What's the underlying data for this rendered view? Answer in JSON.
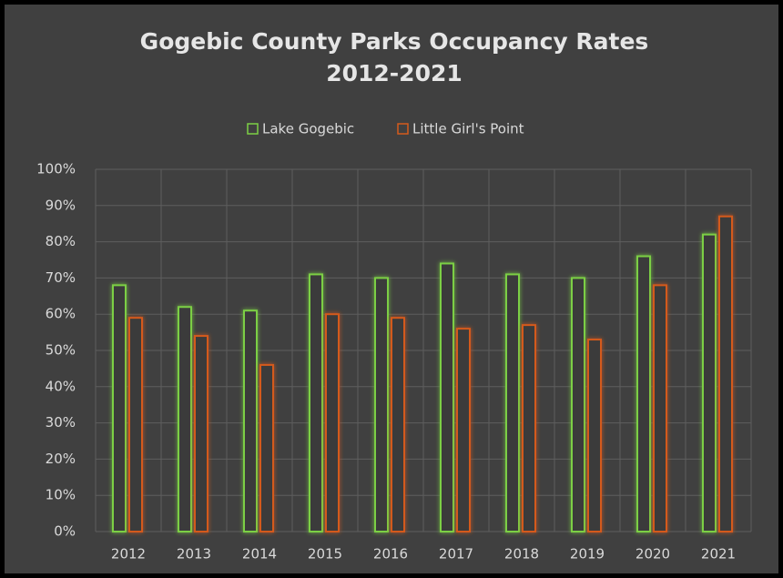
{
  "chart_data": {
    "type": "bar",
    "title": "Gogebic County Parks Occupancy Rates",
    "subtitle": "2012-2021",
    "categories": [
      "2012",
      "2013",
      "2014",
      "2015",
      "2016",
      "2017",
      "2018",
      "2019",
      "2020",
      "2021"
    ],
    "series": [
      {
        "name": "Lake Gogebic",
        "color": "#7ccf45",
        "values": [
          68,
          62,
          61,
          71,
          70,
          74,
          71,
          70,
          76,
          82
        ]
      },
      {
        "name": "Little Girl's Point",
        "color": "#d45a1c",
        "values": [
          59,
          54,
          46,
          60,
          59,
          56,
          57,
          53,
          68,
          87
        ]
      }
    ],
    "ylim": [
      0,
      100
    ],
    "yticks": [
      {
        "value": 0,
        "label": "0%"
      },
      {
        "value": 10,
        "label": "10%"
      },
      {
        "value": 20,
        "label": "20%"
      },
      {
        "value": 30,
        "label": "30%"
      },
      {
        "value": 40,
        "label": "40%"
      },
      {
        "value": 50,
        "label": "50%"
      },
      {
        "value": 60,
        "label": "60%"
      },
      {
        "value": 70,
        "label": "70%"
      },
      {
        "value": 80,
        "label": "80%"
      },
      {
        "value": 90,
        "label": "90%"
      },
      {
        "value": 100,
        "label": "100%"
      }
    ],
    "grid": true,
    "legend": "top"
  }
}
